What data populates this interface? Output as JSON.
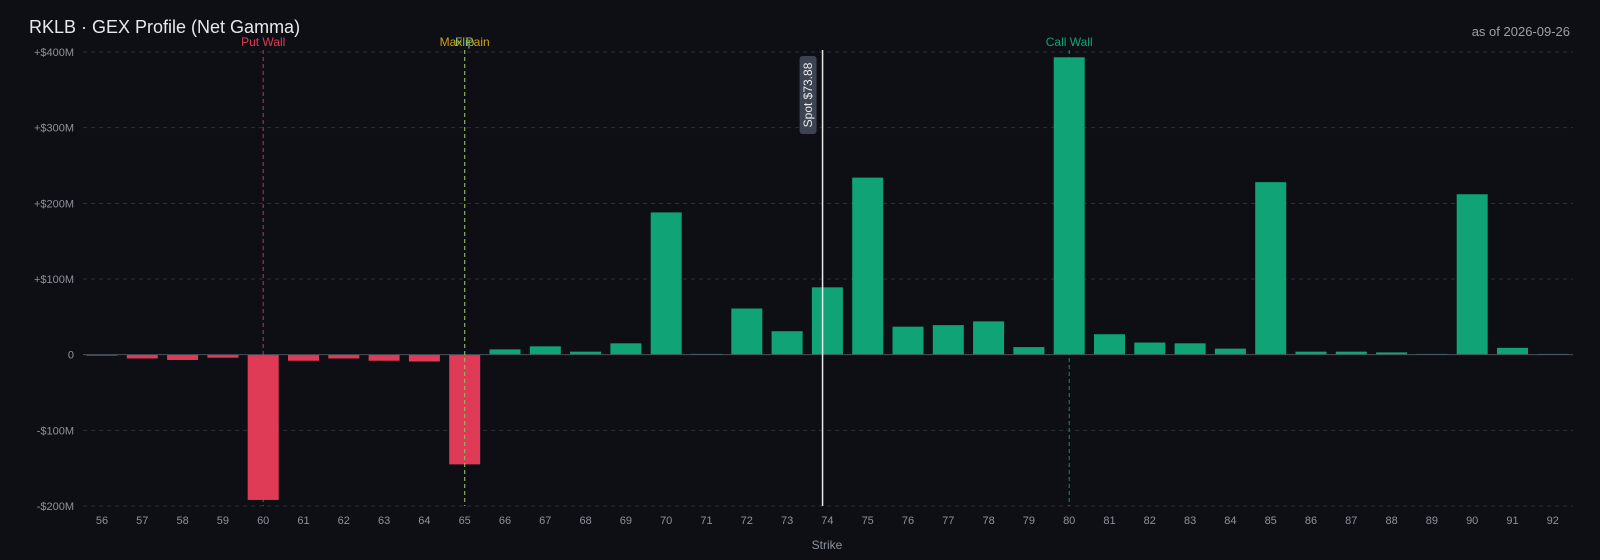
{
  "header": {
    "title": "RKLB · GEX Profile (Net Gamma)",
    "as_of": "as of 2026-09-26"
  },
  "colors": {
    "positive": "#10a376",
    "negative": "#df3b57",
    "put_wall": "#df3b57",
    "call_wall": "#10a376",
    "max_pain": "#d4a017",
    "flip": "#7fbf7f",
    "spot": "#e8e8e8",
    "grid": "#2a2e36",
    "axis_text": "#8c929c",
    "zero_line": "#4a505a"
  },
  "chart_data": {
    "type": "bar",
    "title": "RKLB · GEX Profile (Net Gamma)",
    "xlabel": "Strike",
    "ylabel": "",
    "ylim": [
      -200,
      400
    ],
    "y_unit": "$M",
    "y_ticks": [
      {
        "value": 400,
        "label": "+$400M"
      },
      {
        "value": 300,
        "label": "+$300M"
      },
      {
        "value": 200,
        "label": "+$200M"
      },
      {
        "value": 100,
        "label": "+$100M"
      },
      {
        "value": 0,
        "label": "0"
      },
      {
        "value": -100,
        "label": "-$100M"
      },
      {
        "value": -200,
        "label": "-$200M"
      }
    ],
    "grid": true,
    "categories": [
      "56",
      "57",
      "58",
      "59",
      "60",
      "61",
      "62",
      "63",
      "64",
      "65",
      "66",
      "67",
      "68",
      "69",
      "70",
      "71",
      "72",
      "73",
      "74",
      "75",
      "76",
      "77",
      "78",
      "79",
      "80",
      "81",
      "82",
      "83",
      "84",
      "85",
      "86",
      "87",
      "88",
      "89",
      "90",
      "91",
      "92"
    ],
    "values": [
      -1,
      -5,
      -7,
      -4,
      -192,
      -8,
      -5,
      -8,
      -9,
      -145,
      7,
      11,
      4,
      15,
      188,
      1,
      61,
      31,
      89,
      234,
      37,
      39,
      44,
      10,
      393,
      27,
      16,
      15,
      8,
      228,
      4,
      4,
      3,
      1,
      212,
      9,
      1
    ],
    "markers": [
      {
        "name": "Put Wall",
        "strike": 60,
        "color": "#df3b57",
        "label": "Put Wall"
      },
      {
        "name": "Max Pain",
        "strike": 65,
        "color": "#d4a017",
        "label": "Max Pain"
      },
      {
        "name": "Flip",
        "strike": 65,
        "color": "#7fbf7f",
        "label": "Flip"
      },
      {
        "name": "Call Wall",
        "strike": 80,
        "color": "#10a376",
        "label": "Call Wall"
      }
    ],
    "spot": {
      "value": 73.88,
      "label": "Spot $73.88"
    }
  }
}
